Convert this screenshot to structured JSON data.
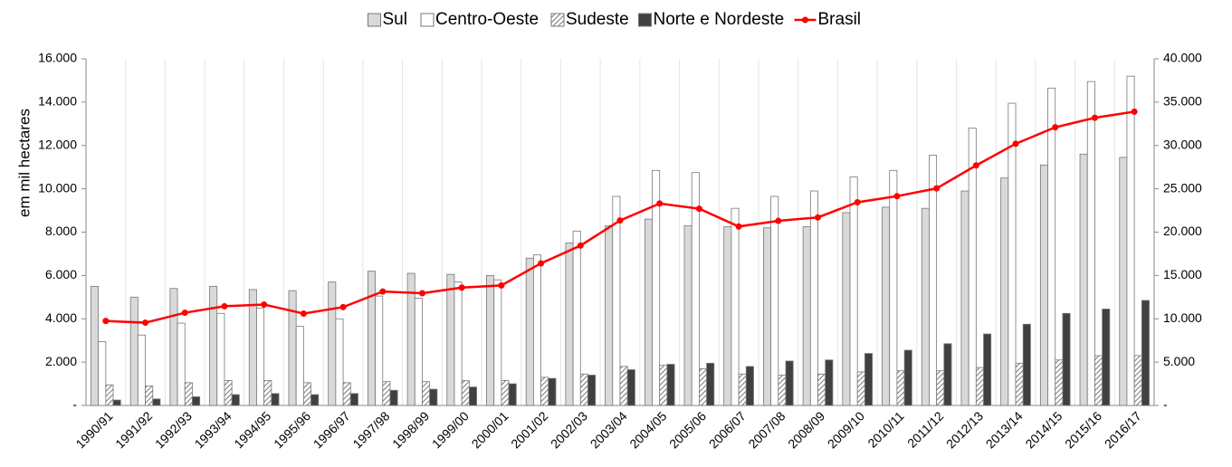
{
  "chart_data": {
    "type": "bar",
    "y_label": "em mil hectares",
    "categories": [
      "1990/91",
      "1991/92",
      "1992/93",
      "1993/94",
      "1994/95",
      "1995/96",
      "1996/97",
      "1997/98",
      "1998/99",
      "1999/00",
      "2000/01",
      "2001/02",
      "2002/03",
      "2003/04",
      "2004/05",
      "2005/06",
      "2006/07",
      "2007/08",
      "2008/09",
      "2009/10",
      "2010/11",
      "2011/12",
      "2012/13",
      "2013/14",
      "2014/15",
      "2015/16",
      "2016/17"
    ],
    "series": [
      {
        "name": "Sul",
        "color": "#d9d9d9",
        "values": [
          5500,
          5000,
          5400,
          5500,
          5350,
          5300,
          5700,
          6200,
          6100,
          6050,
          6000,
          6800,
          7500,
          8300,
          8600,
          8300,
          8250,
          8200,
          8250,
          8900,
          9150,
          9100,
          9900,
          10500,
          11100,
          11600,
          11450
        ]
      },
      {
        "name": "Centro-Oeste",
        "color": "#ffffff",
        "values": [
          2950,
          3250,
          3800,
          4250,
          4500,
          3650,
          4000,
          5050,
          4950,
          5700,
          5800,
          6950,
          8050,
          9650,
          10850,
          10750,
          9100,
          9650,
          9900,
          10550,
          10850,
          11550,
          12800,
          13950,
          14650,
          14950,
          15200
        ]
      },
      {
        "name": "Sudeste",
        "color": "#ffffff",
        "pattern": "hatch",
        "values": [
          950,
          900,
          1050,
          1150,
          1150,
          1050,
          1050,
          1100,
          1100,
          1150,
          1150,
          1300,
          1450,
          1800,
          1850,
          1700,
          1450,
          1400,
          1450,
          1550,
          1600,
          1600,
          1750,
          1950,
          2100,
          2300,
          2300
        ]
      },
      {
        "name": "Norte e Nordeste",
        "color": "#404040",
        "values": [
          250,
          300,
          400,
          500,
          550,
          500,
          550,
          700,
          750,
          850,
          1000,
          1250,
          1400,
          1650,
          1900,
          1950,
          1800,
          2050,
          2100,
          2400,
          2550,
          2850,
          3300,
          3750,
          4250,
          4450,
          4850
        ]
      },
      {
        "name": "Brasil",
        "color": "#ff0000",
        "type": "line",
        "axis": "y2",
        "values": [
          9750,
          9550,
          10700,
          11450,
          11650,
          10600,
          11350,
          13150,
          12950,
          13600,
          13850,
          16400,
          18450,
          21350,
          23300,
          22700,
          20650,
          21300,
          21700,
          23450,
          24150,
          25050,
          27700,
          30200,
          32100,
          33200,
          33900
        ]
      }
    ],
    "ylim": [
      0,
      16000
    ],
    "yticks": [
      {
        "value": 0,
        "label": "-"
      },
      {
        "value": 2000,
        "label": "2.000"
      },
      {
        "value": 4000,
        "label": "4.000"
      },
      {
        "value": 6000,
        "label": "6.000"
      },
      {
        "value": 8000,
        "label": "8.000"
      },
      {
        "value": 10000,
        "label": "10.000"
      },
      {
        "value": 12000,
        "label": "12.000"
      },
      {
        "value": 14000,
        "label": "14.000"
      },
      {
        "value": 16000,
        "label": "16.000"
      }
    ],
    "y2lim": [
      0,
      40000
    ],
    "y2ticks": [
      {
        "value": 0,
        "label": "-"
      },
      {
        "value": 5000,
        "label": "5.000"
      },
      {
        "value": 10000,
        "label": "10.000"
      },
      {
        "value": 15000,
        "label": "15.000"
      },
      {
        "value": 20000,
        "label": "20.000"
      },
      {
        "value": 25000,
        "label": "25.000"
      },
      {
        "value": 30000,
        "label": "30.000"
      },
      {
        "value": 35000,
        "label": "35.000"
      },
      {
        "value": 40000,
        "label": "40.000"
      }
    ],
    "legend": "top"
  }
}
